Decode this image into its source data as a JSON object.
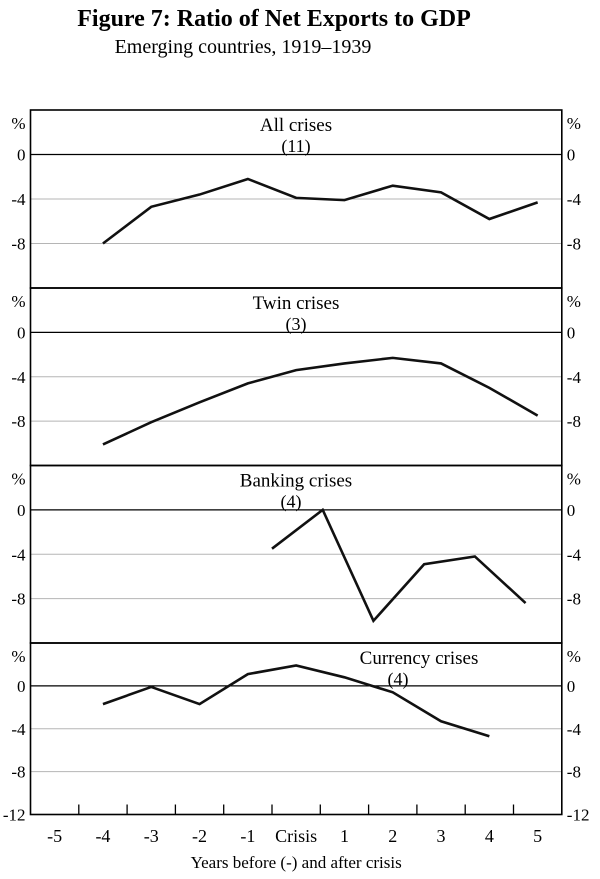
{
  "figure": {
    "title": "Figure 7: Ratio of Net Exports to GDP",
    "subtitle": "Emerging countries, 1919–1939"
  },
  "chart_data": {
    "type": "line",
    "layout_hint": "four stacked panels sharing one x axis; y gridlines at -4 and -8, solid zero line; y labels repeated on both sides of each panel",
    "x_axis": {
      "label": "Years before (-) and after crisis",
      "tick_labels": [
        "-5",
        "-4",
        "-3",
        "-2",
        "-1",
        "Crisis",
        "1",
        "2",
        "3",
        "4",
        "5"
      ],
      "range": [
        -5.5,
        5.5
      ]
    },
    "y_axis": {
      "unit": "%",
      "ticks_per_panel": [
        0,
        -4,
        -8
      ],
      "bottom_tick": -12,
      "range_per_panel": [
        4,
        -12
      ]
    },
    "panels": [
      {
        "title": "All crises",
        "count": "(11)",
        "x": [
          -4,
          -3,
          -2,
          -1,
          0,
          1,
          2,
          3,
          4,
          5
        ],
        "values": [
          -8.0,
          -4.7,
          -3.6,
          -2.2,
          -3.9,
          -4.1,
          -2.8,
          -3.4,
          -5.8,
          -4.3
        ]
      },
      {
        "title": "Twin crises",
        "count": "(3)",
        "x": [
          -4,
          -3,
          -2,
          -1,
          0,
          1,
          2,
          3,
          4,
          5
        ],
        "values": [
          -10.1,
          -8.1,
          -6.3,
          -4.6,
          -3.4,
          -2.8,
          -2.3,
          -2.8,
          -5.0,
          -7.5
        ]
      },
      {
        "title": "Banking crises",
        "count": "(4)",
        "x": [
          -0.5,
          0.55,
          1.6,
          2.65,
          3.7,
          4.75
        ],
        "values": [
          -3.5,
          0.0,
          -10.0,
          -4.9,
          -4.2,
          -8.4
        ]
      },
      {
        "title": "Currency crises",
        "count": "(4)",
        "x": [
          -4,
          -3,
          -2,
          -1,
          0,
          1,
          2,
          3,
          4
        ],
        "values": [
          -1.7,
          -0.1,
          -1.7,
          1.1,
          1.9,
          0.8,
          -0.6,
          -3.3,
          -4.7
        ]
      }
    ],
    "line_color": "#111111",
    "grid_color": "#b5b5b5",
    "frame_color": "#000000"
  }
}
